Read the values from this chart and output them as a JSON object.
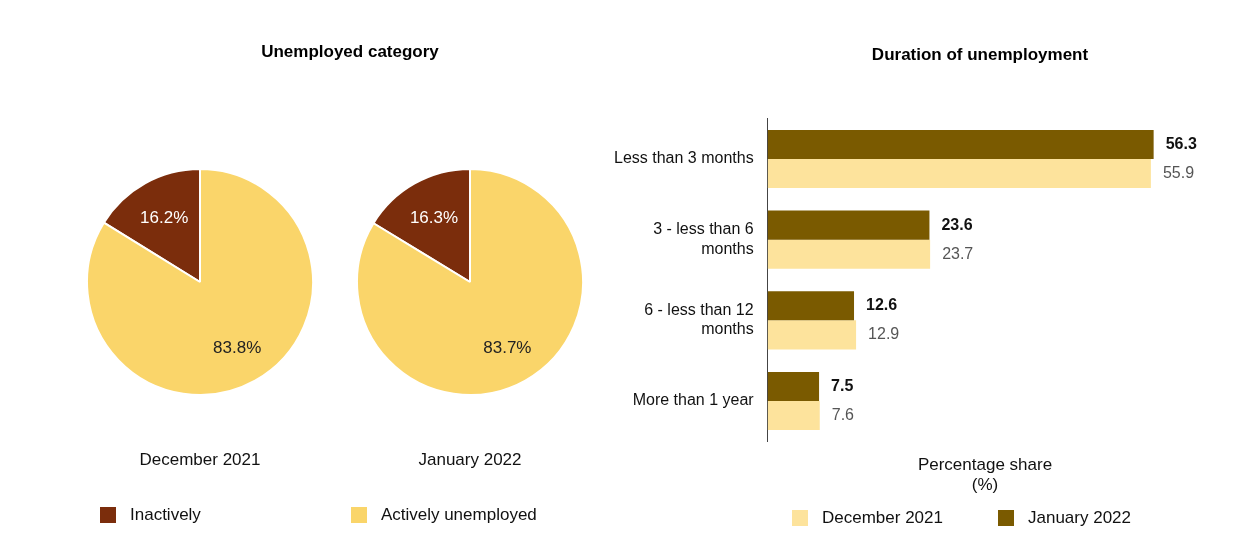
{
  "chart_data": [
    {
      "type": "pie",
      "title": "Unemployed category",
      "xlabel": "December 2021",
      "categories": [
        "Inactively",
        "Actively unemployed"
      ],
      "values": [
        16.2,
        83.8
      ],
      "value_labels": [
        "16.2%",
        "83.8%"
      ],
      "colors": [
        "#7b2d0c",
        "#fad56a"
      ],
      "legend": "bottom"
    },
    {
      "type": "pie",
      "xlabel": "January 2022",
      "categories": [
        null,
        null
      ],
      "values": [
        16.3,
        83.7
      ],
      "value_labels": [
        "16.3%",
        "83.7%"
      ],
      "colors": [
        "#7b2d0c",
        "#fad56a"
      ]
    },
    {
      "type": "bar",
      "orientation": "horizontal",
      "title": "Duration of unemployment",
      "xlabel": "Percentage share (%)",
      "categories": [
        "Less than 3 months",
        "3 - less than 6 months",
        "6 - less than 12 months",
        "More than 1 year"
      ],
      "series": [
        {
          "name": "January 2022",
          "color": "#7a5a00",
          "values": [
            56.3,
            23.6,
            12.6,
            7.5
          ]
        },
        {
          "name": "December 2021",
          "color": "#fde39c",
          "values": [
            55.9,
            23.7,
            12.9,
            7.6
          ]
        }
      ],
      "legend": "bottom",
      "tick_labels": "y",
      "data_labels": true
    }
  ]
}
